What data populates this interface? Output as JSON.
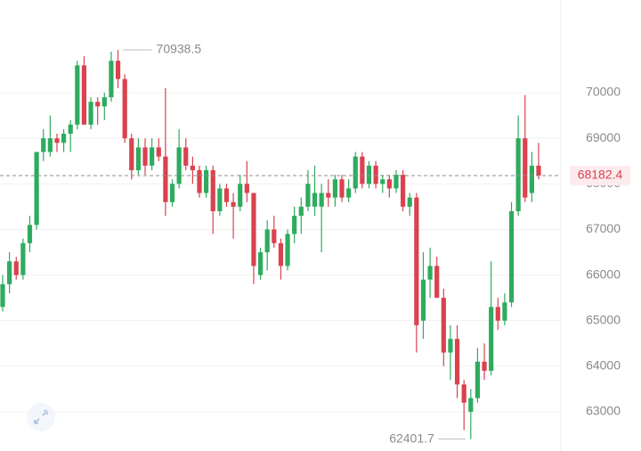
{
  "chart_data": {
    "type": "candlestick",
    "open": [
      65300,
      65800,
      66300,
      66000,
      66700,
      67100,
      68700,
      68700,
      69000,
      68900,
      69100,
      69300,
      70600,
      69300,
      69800,
      69700,
      69900,
      70700,
      70300,
      69000,
      68300,
      68800,
      68400,
      68800,
      68600,
      67600,
      68000,
      68800,
      68400,
      68300,
      67800,
      68300,
      67400,
      67900,
      67600,
      67500,
      68000,
      67800,
      66000,
      66500,
      67000,
      66700,
      66200,
      66900,
      67300,
      67500,
      67500,
      67500,
      67800,
      67700,
      68100,
      67700,
      67900,
      68600,
      68000,
      68400,
      68000,
      68100,
      67900,
      68200,
      67500,
      67700,
      65000,
      65900,
      66200,
      65500,
      64300,
      64600,
      63600,
      63000,
      63300,
      64100,
      63900,
      65300,
      65000,
      65400,
      67400,
      69000,
      67800,
      68400
    ],
    "high": [
      66000,
      66500,
      66400,
      66800,
      67300,
      68700,
      69200,
      69500,
      69100,
      69200,
      69400,
      70700,
      70800,
      69900,
      69900,
      70000,
      70900,
      70938.5,
      70400,
      69100,
      69000,
      69000,
      69000,
      69000,
      70100,
      68100,
      69200,
      69000,
      68600,
      68400,
      68400,
      68400,
      68000,
      68000,
      67800,
      68200,
      68500,
      67800,
      66600,
      67200,
      67300,
      66800,
      67000,
      67500,
      67700,
      68300,
      68400,
      68000,
      68100,
      68200,
      68200,
      68100,
      68700,
      68700,
      68500,
      68500,
      68200,
      68200,
      68300,
      68300,
      67800,
      67800,
      66500,
      66600,
      66400,
      65700,
      64900,
      64900,
      63700,
      63500,
      64400,
      64500,
      66300,
      65500,
      65600,
      67600,
      69500,
      69950,
      68700,
      68900
    ],
    "low": [
      65200,
      65600,
      65900,
      65900,
      66500,
      67000,
      68500,
      68600,
      68700,
      68700,
      68700,
      69200,
      69300,
      69200,
      69300,
      69400,
      69800,
      70100,
      68900,
      68100,
      68200,
      68200,
      68300,
      68500,
      67300,
      67500,
      67900,
      68300,
      68000,
      67700,
      67700,
      66900,
      67300,
      67500,
      66800,
      67400,
      67600,
      65800,
      65900,
      66100,
      66600,
      65900,
      66100,
      66700,
      66900,
      67400,
      67300,
      66500,
      67500,
      67500,
      67600,
      67600,
      67800,
      67900,
      67900,
      67900,
      67800,
      67700,
      67800,
      67400,
      67300,
      64300,
      64600,
      65500,
      65500,
      64000,
      63700,
      63300,
      62600,
      62401.7,
      63200,
      63700,
      63800,
      64800,
      64900,
      65300,
      67300,
      67600,
      67600,
      68100
    ],
    "close": [
      65800,
      66300,
      66000,
      66700,
      67100,
      68700,
      69000,
      69000,
      68900,
      69100,
      69300,
      70600,
      69300,
      69800,
      69700,
      69900,
      70700,
      70300,
      69000,
      68300,
      68800,
      68400,
      68800,
      68600,
      67600,
      68000,
      68800,
      68400,
      68300,
      67800,
      68300,
      67400,
      67900,
      67600,
      67500,
      68000,
      67800,
      66200,
      66500,
      67000,
      66700,
      66200,
      66900,
      67300,
      67500,
      68000,
      67800,
      67800,
      67700,
      68100,
      67700,
      67900,
      68600,
      68000,
      68400,
      68000,
      68100,
      67900,
      68200,
      67500,
      67700,
      64900,
      65900,
      66200,
      65500,
      64300,
      64600,
      63600,
      63200,
      63300,
      64100,
      63900,
      65300,
      65000,
      65400,
      67400,
      69000,
      67700,
      68400,
      68182.4
    ],
    "up_color": "#2eab5f",
    "down_color": "#d9424e",
    "ylim": [
      62140,
      72034
    ],
    "yticks": [
      63000,
      64000,
      65000,
      66000,
      67000,
      68000,
      69000,
      70000
    ],
    "grid": true,
    "max_label": 70938.5,
    "min_label": 62401.7,
    "last_price": 68182.4
  }
}
